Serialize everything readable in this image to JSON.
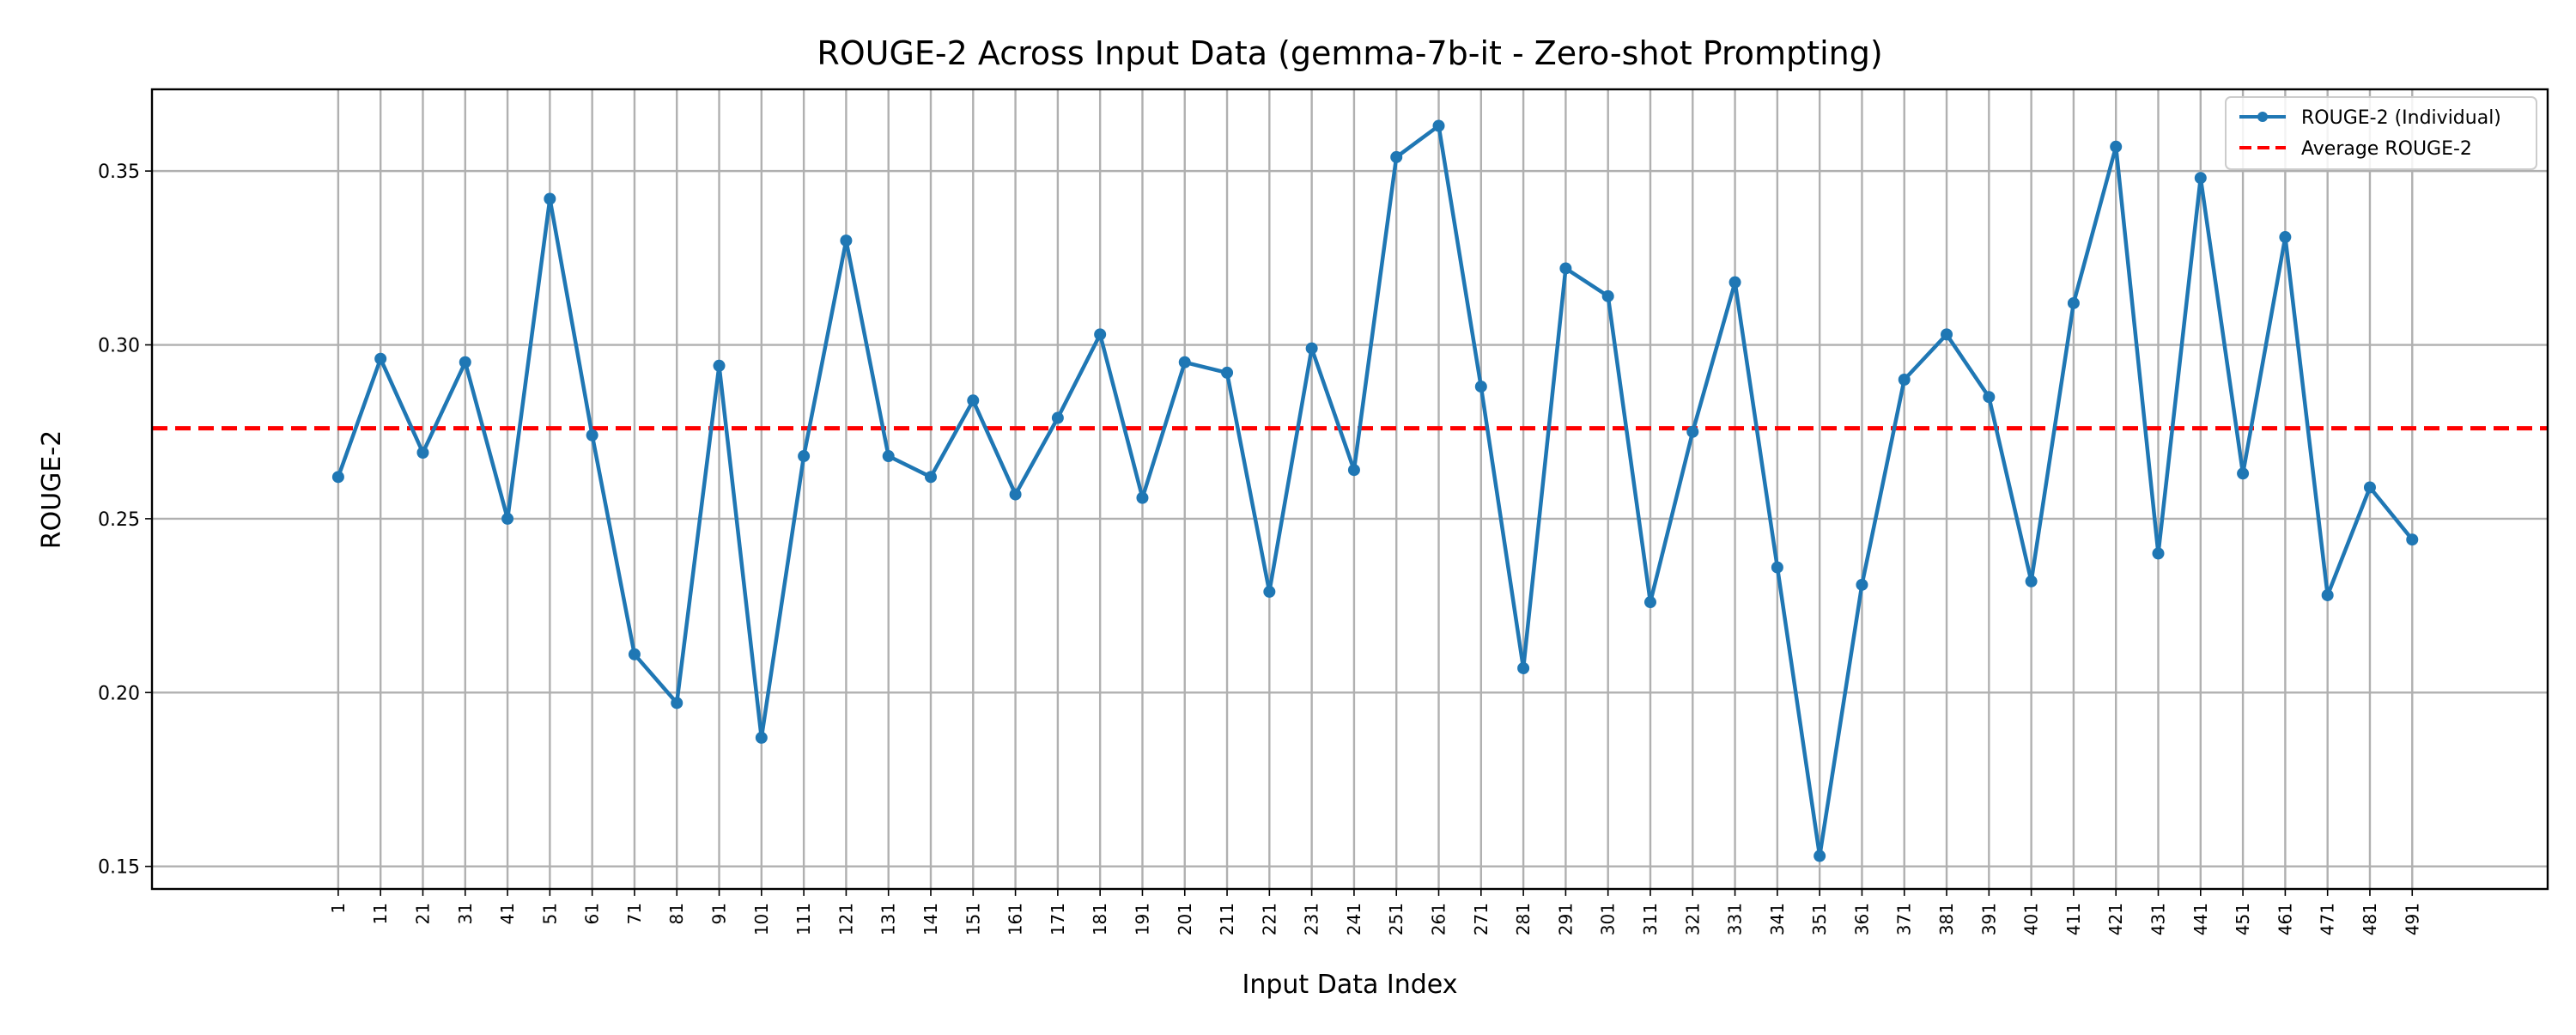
{
  "chart_data": {
    "type": "line",
    "title": "ROUGE-2 Across Input Data (gemma-7b-it - Zero-shot Prompting)",
    "xlabel": "Input Data Index",
    "ylabel": "ROUGE-2",
    "x": [
      1,
      11,
      21,
      31,
      41,
      51,
      61,
      71,
      81,
      91,
      101,
      111,
      121,
      131,
      141,
      151,
      161,
      171,
      181,
      191,
      201,
      211,
      221,
      231,
      241,
      251,
      261,
      271,
      281,
      291,
      301,
      311,
      321,
      331,
      341,
      351,
      361,
      371,
      381,
      391,
      401,
      411,
      421,
      431,
      441,
      451,
      461,
      471,
      481,
      491
    ],
    "xlim": [
      -43,
      523
    ],
    "ylim": [
      0.1435,
      0.3735
    ],
    "yticks": [
      0.15,
      0.2,
      0.25,
      0.3,
      0.35
    ],
    "ytick_labels": [
      "0.15",
      "0.20",
      "0.25",
      "0.30",
      "0.35"
    ],
    "grid": true,
    "legend_position": "upper right",
    "series": [
      {
        "name": "ROUGE-2 (Individual)",
        "color": "#1f77b4",
        "style": "solid-line-with-markers",
        "values": [
          0.262,
          0.296,
          0.269,
          0.295,
          0.25,
          0.342,
          0.274,
          0.211,
          0.197,
          0.294,
          0.187,
          0.268,
          0.33,
          0.268,
          0.262,
          0.284,
          0.257,
          0.279,
          0.303,
          0.256,
          0.295,
          0.292,
          0.229,
          0.299,
          0.264,
          0.354,
          0.363,
          0.288,
          0.207,
          0.322,
          0.314,
          0.226,
          0.275,
          0.318,
          0.236,
          0.153,
          0.231,
          0.29,
          0.303,
          0.285,
          0.232,
          0.312,
          0.357,
          0.24,
          0.348,
          0.263,
          0.331,
          0.228,
          0.259,
          0.244
        ]
      },
      {
        "name": "Average ROUGE-2",
        "color": "#ff0000",
        "style": "dashed-horizontal-line",
        "value": 0.276
      }
    ]
  }
}
